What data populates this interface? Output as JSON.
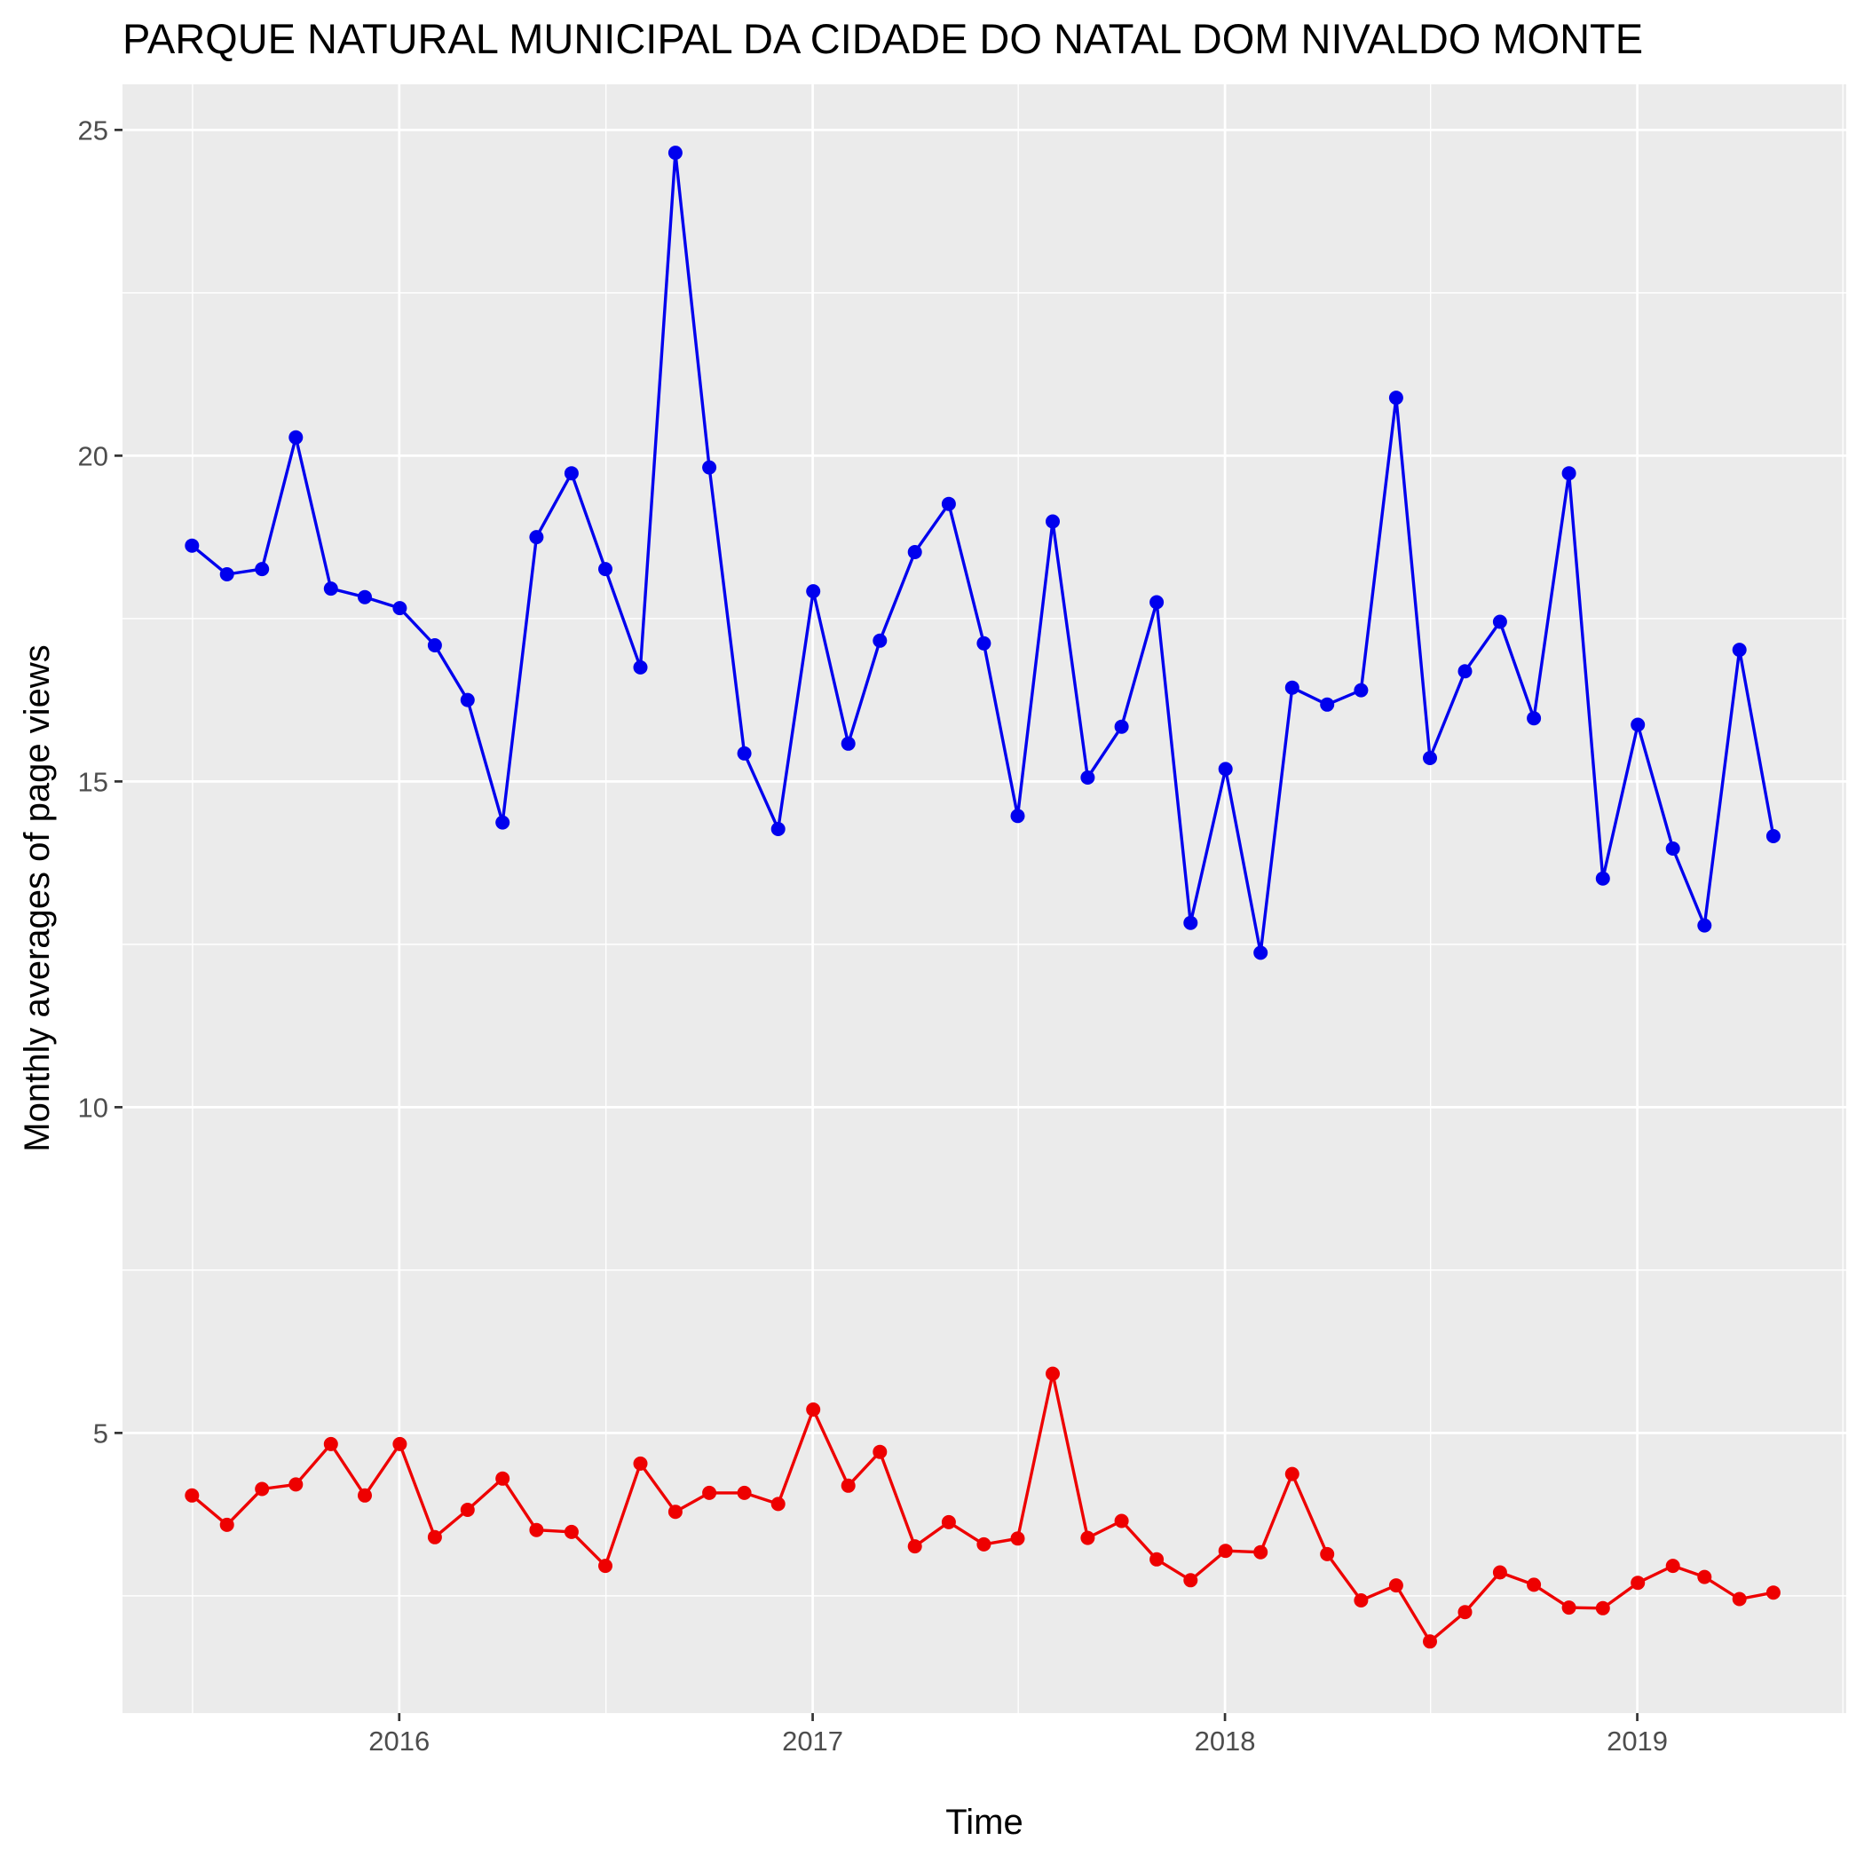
{
  "chart_data": {
    "type": "line",
    "title": "PARQUE NATURAL MUNICIPAL DA CIDADE DO NATAL DOM NIVALDO MONTE",
    "xlabel": "Time",
    "ylabel": "Monthly averages of page views",
    "x_start": "2015-07",
    "x_ticks": [
      {
        "date": "2016-01",
        "label": "2016"
      },
      {
        "date": "2017-01",
        "label": "2017"
      },
      {
        "date": "2018-01",
        "label": "2018"
      },
      {
        "date": "2019-01",
        "label": "2019"
      }
    ],
    "xlim": [
      "2015-05-01",
      "2019-07-05"
    ],
    "ylim": [
      0.7,
      25.7
    ],
    "y_ticks": [
      5,
      10,
      15,
      20,
      25
    ],
    "grid": true,
    "series": [
      {
        "color": "#0000ee",
        "values": [
          18.62,
          18.18,
          18.26,
          20.28,
          17.96,
          17.83,
          17.66,
          17.09,
          16.25,
          14.37,
          18.75,
          19.73,
          18.26,
          16.75,
          24.65,
          19.82,
          15.43,
          14.27,
          17.92,
          15.58,
          17.16,
          18.52,
          19.26,
          17.12,
          14.47,
          18.99,
          15.06,
          15.84,
          17.75,
          12.83,
          15.19,
          12.37,
          16.44,
          16.18,
          16.4,
          20.89,
          15.36,
          16.69,
          17.45,
          15.97,
          19.73,
          13.51,
          15.87,
          13.97,
          12.79,
          17.02,
          14.16
        ]
      },
      {
        "color": "#ee0000",
        "values": [
          4.04,
          3.59,
          4.14,
          4.21,
          4.83,
          4.04,
          4.83,
          3.4,
          3.82,
          4.3,
          3.51,
          3.48,
          2.96,
          4.53,
          3.79,
          4.08,
          4.08,
          3.91,
          5.36,
          4.19,
          4.71,
          3.26,
          3.63,
          3.29,
          3.38,
          5.91,
          3.39,
          3.65,
          3.06,
          2.74,
          3.19,
          3.17,
          4.37,
          3.14,
          2.43,
          2.66,
          1.8,
          2.25,
          2.86,
          2.67,
          2.32,
          2.31,
          2.7,
          2.96,
          2.79,
          2.45,
          2.55
        ]
      }
    ]
  }
}
